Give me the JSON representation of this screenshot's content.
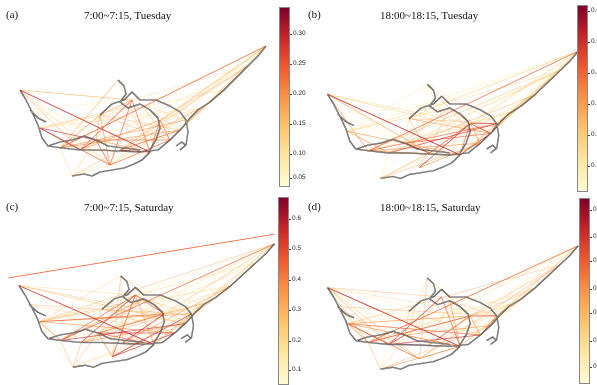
{
  "panels": [
    {
      "label": "(a)",
      "title": "7:00~7:15, Tuesday",
      "colorbar": {
        "ticks": [
          "0.30",
          "0.25",
          "0.20",
          "0.15",
          "0.10",
          "0.05"
        ],
        "max": "0.33"
      }
    },
    {
      "label": "(b)",
      "title": "18:00~18:15, Tuesday",
      "colorbar": {
        "ticks": [
          "0.6",
          "0.5",
          "0.4",
          "0.3",
          "0.2",
          "0.1"
        ],
        "max": "0.6"
      }
    },
    {
      "label": "(c)",
      "title": "7:00~7:15, Saturday",
      "colorbar": {
        "ticks": [
          "0.6",
          "0.5",
          "0.4",
          "0.3",
          "0.2",
          "0.1"
        ],
        "max": "0.65"
      }
    },
    {
      "label": "(d)",
      "title": "18:00~18:15, Saturday",
      "colorbar": {
        "ticks": [
          "0.3",
          "0.3",
          "0.2",
          "0.2",
          "0.1",
          "0.1",
          "0.0"
        ],
        "max": "0.32"
      }
    }
  ],
  "colormap": [
    "#fffbd6",
    "#fde7a0",
    "#fdc46d",
    "#fa9446",
    "#ee5a30",
    "#c6262a",
    "#7f0026"
  ]
}
